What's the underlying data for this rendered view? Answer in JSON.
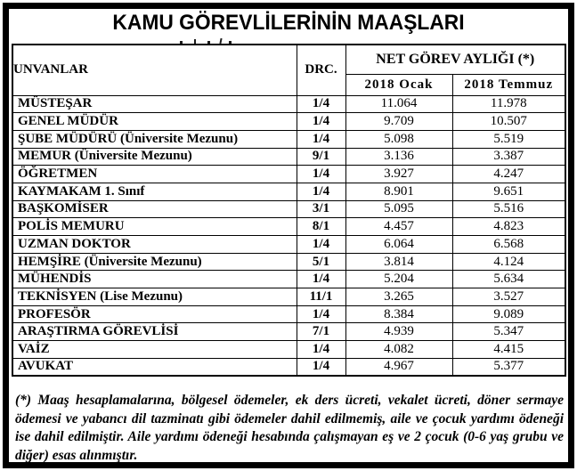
{
  "title": "KAMU GÖREVLİLERİNİN MAAŞLARI",
  "table": {
    "headers": {
      "unvanlar": "UNVANLAR",
      "drc": "DRC.",
      "net_gorev": "NET GÖREV AYLIĞI (*)",
      "ocak": "2018 Ocak",
      "temmuz": "2018 Temmuz"
    },
    "rows": [
      {
        "unvan": "MÜSTEŞAR",
        "drc": "1/4",
        "ocak": "11.064",
        "temmuz": "11.978"
      },
      {
        "unvan": "GENEL MÜDÜR",
        "drc": "1/4",
        "ocak": "9.709",
        "temmuz": "10.507"
      },
      {
        "unvan": "ŞUBE MÜDÜRÜ (Üniversite Mezunu)",
        "drc": "1/4",
        "ocak": "5.098",
        "temmuz": "5.519"
      },
      {
        "unvan": "MEMUR (Üniversite Mezunu)",
        "drc": "9/1",
        "ocak": "3.136",
        "temmuz": "3.387"
      },
      {
        "unvan": "ÖĞRETMEN",
        "drc": "1/4",
        "ocak": "3.927",
        "temmuz": "4.247"
      },
      {
        "unvan": "KAYMAKAM 1. Sınıf",
        "drc": "1/4",
        "ocak": "8.901",
        "temmuz": "9.651"
      },
      {
        "unvan": "BAŞKOMİSER",
        "drc": "3/1",
        "ocak": "5.095",
        "temmuz": "5.516"
      },
      {
        "unvan": "POLİS MEMURU",
        "drc": "8/1",
        "ocak": "4.457",
        "temmuz": "4.823"
      },
      {
        "unvan": "UZMAN DOKTOR",
        "drc": "1/4",
        "ocak": "6.064",
        "temmuz": "6.568"
      },
      {
        "unvan": "HEMŞİRE (Üniversite Mezunu)",
        "drc": "5/1",
        "ocak": "3.814",
        "temmuz": "4.124"
      },
      {
        "unvan": "MÜHENDİS",
        "drc": "1/4",
        "ocak": "5.204",
        "temmuz": "5.634"
      },
      {
        "unvan": "TEKNİSYEN (Lise Mezunu)",
        "drc": "11/1",
        "ocak": "3.265",
        "temmuz": "3.527"
      },
      {
        "unvan": "PROFESÖR",
        "drc": "1/4",
        "ocak": "8.384",
        "temmuz": "9.089"
      },
      {
        "unvan": "ARAŞTIRMA GÖREVLİSİ",
        "drc": "7/1",
        "ocak": "4.939",
        "temmuz": "5.347"
      },
      {
        "unvan": "VAİZ",
        "drc": "1/4",
        "ocak": "4.082",
        "temmuz": "4.415"
      },
      {
        "unvan": "AVUKAT",
        "drc": "1/4",
        "ocak": "4.967",
        "temmuz": "5.377"
      }
    ]
  },
  "footnote": "(*) Maaş hesaplamalarına, bölgesel ödemeler, ek ders ücreti, vekalet ücreti, döner sermaye ödemesi ve yabancı dil tazminatı gibi ödemeler dahil edilmemiş, aile ve çocuk yardımı ödeneği ise dahil edilmiştir. Aile yardımı ödeneği hesabında çalışmayan eş ve 2 çocuk (0-6 yaş grubu ve diğer) esas alınmıştır.",
  "colors": {
    "border": "#000000",
    "background": "#ffffff",
    "text": "#000000"
  }
}
